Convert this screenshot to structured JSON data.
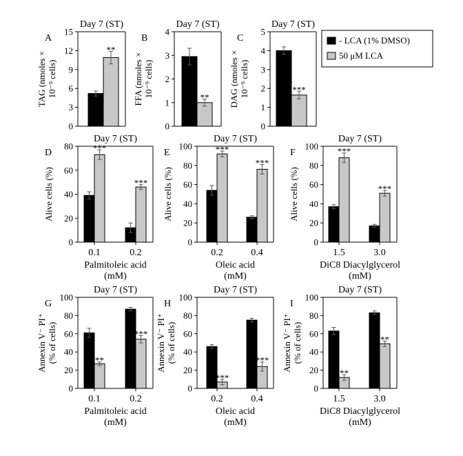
{
  "colors": {
    "lca_minus": "#000000",
    "lca_plus": "#c8c8c8",
    "axis": "#000000"
  },
  "legend": {
    "items": [
      "- LCA (1% DMSO)",
      "50 μM LCA"
    ]
  },
  "chart_data": [
    {
      "id": "A",
      "type": "bar",
      "panel_label": "A",
      "title": "Day 7 (ST)",
      "ylabel": [
        "TAG (nmoles ×",
        "10⁻⁹ cells)"
      ],
      "xlabel": [],
      "ylim": [
        0,
        15
      ],
      "yticks": [
        "0",
        "3",
        "6",
        "9",
        "12",
        "15"
      ],
      "groups": [
        {
          "category": "",
          "values": [
            5.2,
            10.9
          ],
          "errors": [
            0.4,
            1.0
          ],
          "sig": [
            "",
            "**"
          ]
        }
      ]
    },
    {
      "id": "B",
      "type": "bar",
      "panel_label": "B",
      "title": "Day 7 (ST)",
      "ylabel": [
        "FFA (nmoles ×",
        "10⁻⁹ cells)"
      ],
      "xlabel": [],
      "ylim": [
        0,
        4
      ],
      "yticks": [
        "0",
        "1",
        "2",
        "3",
        "4"
      ],
      "groups": [
        {
          "category": "",
          "values": [
            2.95,
            1.0
          ],
          "errors": [
            0.35,
            0.15
          ],
          "sig": [
            "",
            "**"
          ]
        }
      ]
    },
    {
      "id": "C",
      "type": "bar",
      "panel_label": "C",
      "title": "Day 7 (ST)",
      "ylabel": [
        "DAG (nmoles ×",
        "10⁻⁹ cells)"
      ],
      "xlabel": [],
      "ylim": [
        0,
        5
      ],
      "yticks": [
        "0",
        "1",
        "2",
        "3",
        "4",
        "5"
      ],
      "groups": [
        {
          "category": "",
          "values": [
            4.0,
            1.65
          ],
          "errors": [
            0.2,
            0.2
          ],
          "sig": [
            "",
            "***"
          ]
        }
      ]
    },
    {
      "id": "D",
      "type": "bar",
      "panel_label": "D",
      "title": "Day 7 (ST)",
      "ylabel": [
        "Alive cells (%)"
      ],
      "xlabel": [
        "Palmitoleic acid",
        "(mM)"
      ],
      "ylim": [
        0,
        80
      ],
      "yticks": [
        "0",
        "20",
        "40",
        "60",
        "80"
      ],
      "groups": [
        {
          "category": "0.1",
          "values": [
            39,
            73
          ],
          "errors": [
            3,
            4
          ],
          "sig": [
            "",
            "***"
          ]
        },
        {
          "category": "0.2",
          "values": [
            12,
            46
          ],
          "errors": [
            4,
            2
          ],
          "sig": [
            "",
            "***"
          ]
        }
      ]
    },
    {
      "id": "E",
      "type": "bar",
      "panel_label": "E",
      "title": "Day 7 (ST)",
      "ylabel": [
        "Alive cells (%)"
      ],
      "xlabel": [
        "Oleic acid",
        "(mM)"
      ],
      "ylim": [
        0,
        100
      ],
      "yticks": [
        "0",
        "20",
        "40",
        "60",
        "80",
        "100"
      ],
      "groups": [
        {
          "category": "0.2",
          "values": [
            54,
            92
          ],
          "errors": [
            5,
            3
          ],
          "sig": [
            "",
            "***"
          ]
        },
        {
          "category": "0.4",
          "values": [
            26,
            76
          ],
          "errors": [
            1.5,
            5
          ],
          "sig": [
            "",
            "***"
          ]
        }
      ]
    },
    {
      "id": "F",
      "type": "bar",
      "panel_label": "F",
      "title": "Day 7 (ST)",
      "ylabel": [
        "Alive cells (%)"
      ],
      "xlabel": [
        "DiC8 Diacylglycerol",
        "(mM)"
      ],
      "ylim": [
        0,
        100
      ],
      "yticks": [
        "0",
        "20",
        "40",
        "60",
        "80",
        "100"
      ],
      "groups": [
        {
          "category": "1.5",
          "values": [
            37,
            88
          ],
          "errors": [
            2,
            5
          ],
          "sig": [
            "",
            "***"
          ]
        },
        {
          "category": "3.0",
          "values": [
            17,
            51
          ],
          "errors": [
            1.5,
            3
          ],
          "sig": [
            "",
            "***"
          ]
        }
      ]
    },
    {
      "id": "G",
      "type": "bar",
      "panel_label": "G",
      "title": "Day 7 (ST)",
      "ylabel": [
        "Annexin V⁻ PI⁺",
        "(% of cells)"
      ],
      "xlabel": [
        "Palmitoleic acid",
        "(mM)"
      ],
      "ylim": [
        0,
        100
      ],
      "yticks": [
        "0",
        "20",
        "40",
        "60",
        "80",
        "100"
      ],
      "groups": [
        {
          "category": "0.1",
          "values": [
            61,
            27
          ],
          "errors": [
            5,
            2
          ],
          "sig": [
            "",
            "**"
          ]
        },
        {
          "category": "0.2",
          "values": [
            87,
            54
          ],
          "errors": [
            2,
            4
          ],
          "sig": [
            "",
            "***"
          ]
        }
      ]
    },
    {
      "id": "H",
      "type": "bar",
      "panel_label": "H",
      "title": "Day 7 (ST)",
      "ylabel": [
        "Annexin V⁻ PI⁺",
        "(% of cells)"
      ],
      "xlabel": [
        "Oleic acid",
        "(mM)"
      ],
      "ylim": [
        0,
        100
      ],
      "yticks": [
        "0",
        "20",
        "40",
        "60",
        "80",
        "100"
      ],
      "groups": [
        {
          "category": "0.2",
          "values": [
            46,
            7
          ],
          "errors": [
            2,
            3
          ],
          "sig": [
            "",
            "***"
          ]
        },
        {
          "category": "0.4",
          "values": [
            75,
            24
          ],
          "errors": [
            2,
            5
          ],
          "sig": [
            "",
            "***"
          ]
        }
      ]
    },
    {
      "id": "I",
      "type": "bar",
      "panel_label": "I",
      "title": "Day 7 (ST)",
      "ylabel": [
        "Annexin V⁻ PI⁺",
        "(% of cells)"
      ],
      "xlabel": [
        "DiC8 Diacylglycerol",
        "(mM)"
      ],
      "ylim": [
        0,
        100
      ],
      "yticks": [
        "0",
        "20",
        "40",
        "60",
        "80",
        "100"
      ],
      "groups": [
        {
          "category": "1.5",
          "values": [
            63,
            12
          ],
          "errors": [
            4,
            3
          ],
          "sig": [
            "",
            "**"
          ]
        },
        {
          "category": "3.0",
          "values": [
            83,
            49
          ],
          "errors": [
            2,
            3
          ],
          "sig": [
            "",
            "**"
          ]
        }
      ]
    }
  ]
}
